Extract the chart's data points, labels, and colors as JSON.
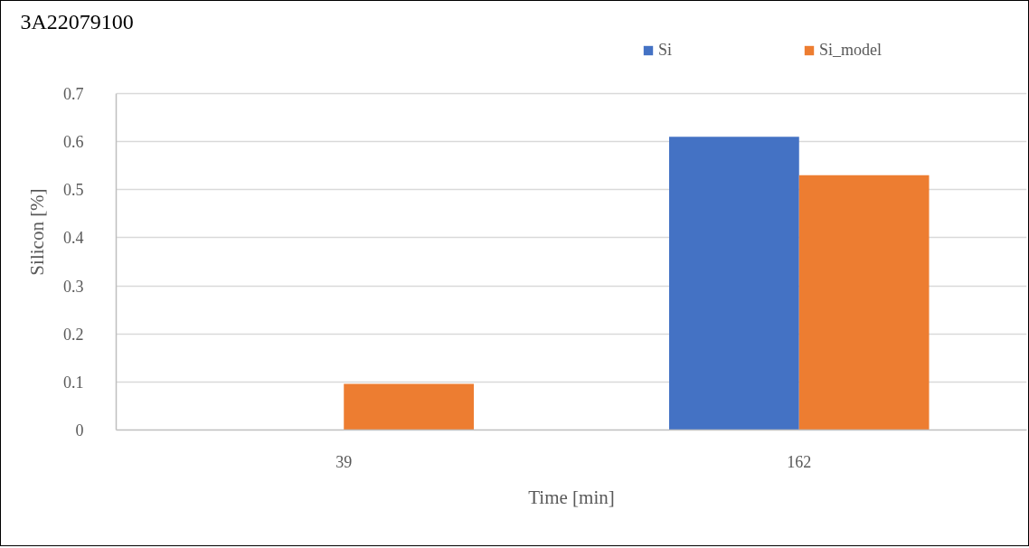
{
  "chart_data": {
    "type": "bar",
    "title": "3A22079100",
    "xlabel": "Time [min]",
    "ylabel": "Silicon [%]",
    "categories": [
      "39",
      "162"
    ],
    "series": [
      {
        "name": "Si",
        "color": "#4472c4",
        "values": [
          null,
          0.61
        ]
      },
      {
        "name": "Si_model",
        "color": "#ed7d31",
        "values": [
          0.096,
          0.53
        ]
      }
    ],
    "ylim": [
      0,
      0.7
    ],
    "yticks": [
      0,
      0.1,
      0.2,
      0.3,
      0.4,
      0.5,
      0.6,
      0.7
    ],
    "grid": "y",
    "legend": "top right"
  }
}
